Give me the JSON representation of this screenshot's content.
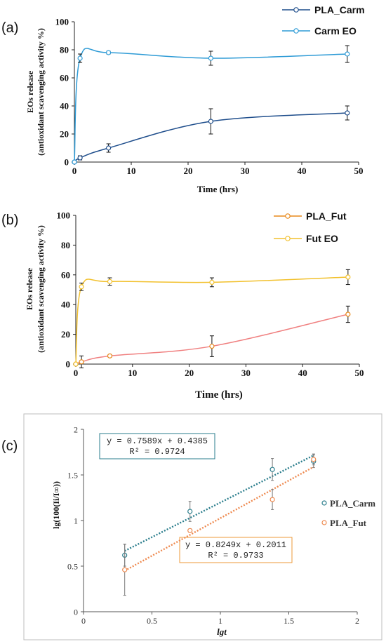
{
  "chart_data": [
    {
      "id": "a",
      "type": "line",
      "panel_label": "(a)",
      "xlabel": "Time (hrs)",
      "ylabel_lines": [
        "EOs release",
        "(antioxidant scavenging activity %)"
      ],
      "xlim": [
        0,
        50
      ],
      "ylim": [
        0,
        100
      ],
      "xticks": [
        0,
        10,
        20,
        30,
        40,
        50
      ],
      "yticks": [
        0,
        20,
        40,
        60,
        80,
        100
      ],
      "legend_position": "top-right",
      "series": [
        {
          "name": "PLA_Carm",
          "color": "#1f4e8c",
          "smooth": true,
          "x": [
            0,
            1,
            6,
            24,
            48
          ],
          "y": [
            0,
            3,
            10,
            29,
            35
          ],
          "err": [
            0,
            1.5,
            3,
            9,
            5
          ]
        },
        {
          "name": "Carm EO",
          "color": "#2e9bd6",
          "smooth": true,
          "x": [
            0,
            1,
            6,
            24,
            48
          ],
          "y": [
            0,
            74,
            78,
            74,
            77
          ],
          "err": [
            0,
            3,
            1,
            5,
            6
          ]
        }
      ]
    },
    {
      "id": "b",
      "type": "line",
      "panel_label": "(b)",
      "xlabel": "Time (hrs)",
      "ylabel_lines": [
        "EOs release",
        "(antioxidant scavenging activity %)"
      ],
      "xlim": [
        0,
        50
      ],
      "ylim": [
        0,
        100
      ],
      "xticks": [
        0,
        10,
        20,
        30,
        40,
        50
      ],
      "yticks": [
        0,
        20,
        40,
        60,
        80,
        100
      ],
      "legend_position": "top-right",
      "series": [
        {
          "name": "PLA_Fut",
          "color": "#e8891a",
          "line_color": "#f08080",
          "smooth": true,
          "x": [
            0,
            1,
            6,
            24,
            48
          ],
          "y": [
            0,
            1.5,
            5.5,
            12,
            33.5
          ],
          "err": [
            0,
            4,
            0.8,
            7,
            5.5
          ]
        },
        {
          "name": "Fut EO",
          "color": "#f2c12e",
          "smooth": true,
          "x": [
            0,
            1,
            6,
            24,
            48
          ],
          "y": [
            0,
            52,
            55.5,
            55,
            58.5
          ],
          "err": [
            0,
            2.5,
            2.5,
            3,
            5
          ]
        }
      ]
    },
    {
      "id": "c",
      "type": "scatter",
      "panel_label": "(c)",
      "xlabel": "lgt",
      "ylabel": "lg(100(Ii/I∞))",
      "xlim": [
        0,
        2
      ],
      "ylim": [
        0,
        2
      ],
      "xticks": [
        0,
        0.5,
        1,
        1.5,
        2
      ],
      "yticks": [
        0,
        0.5,
        1,
        1.5,
        2
      ],
      "legend_position": "right",
      "series": [
        {
          "name": "PLA_Carm",
          "color": "#2a7d8c",
          "x": [
            0.301,
            0.778,
            1.38,
            1.681
          ],
          "y": [
            0.62,
            1.1,
            1.56,
            1.65
          ],
          "err": [
            0.12,
            0.11,
            0.12,
            0.07
          ],
          "trendline": {
            "slope": 0.7589,
            "intercept": 0.4385,
            "equation": "y = 0.7589x + 0.4385",
            "r2": "R² = 0.9724"
          }
        },
        {
          "name": "PLA_Fut",
          "color": "#ee8a50",
          "x": [
            0.301,
            0.778,
            1.38,
            1.681
          ],
          "y": [
            0.46,
            0.89,
            1.23,
            1.67
          ],
          "err": [
            0.28,
            0.02,
            0.11,
            0.06
          ],
          "trendline": {
            "slope": 0.8249,
            "intercept": 0.2011,
            "equation": "y = 0.8249x + 0.2011",
            "r2": "R² = 0.9733"
          }
        }
      ]
    }
  ]
}
